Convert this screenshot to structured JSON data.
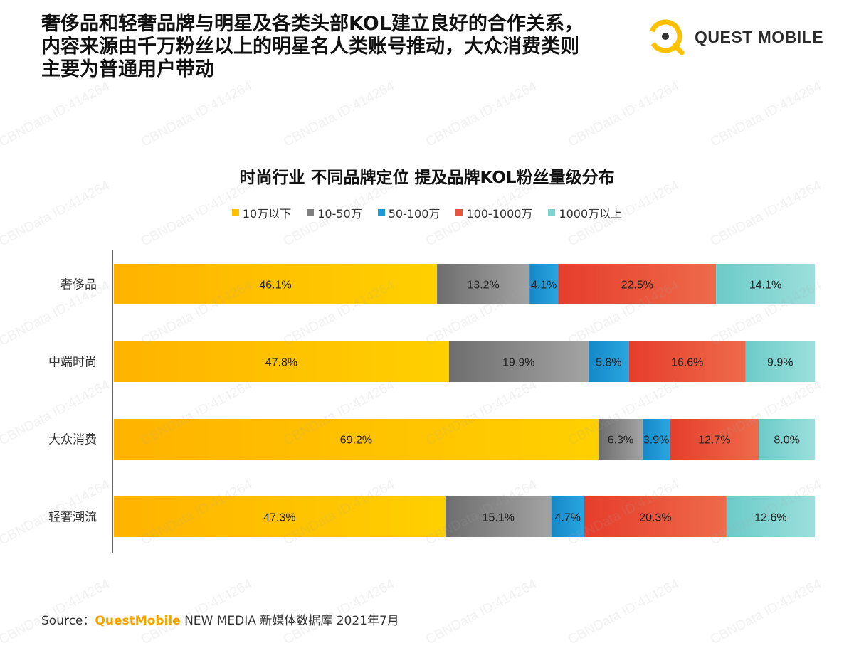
{
  "headline": {
    "line1": "奢侈品和轻奢品牌与明星及各类头部KOL建立良好的合作关系，",
    "line2": "内容来源由千万粉丝以上的明星名人类账号推动，大众消费类则",
    "line3": "主要为普通用户带动"
  },
  "logo": {
    "text": "QUEST MOBILE"
  },
  "watermark": {
    "text": "CBNData ID:414264"
  },
  "source": {
    "prefix": "Source：",
    "brand": "QuestMobile",
    "rest": " NEW MEDIA 新媒体数据库 2021年7月"
  },
  "colors": {
    "yellow": "#FFC000",
    "gray": "#808080",
    "blue": "#1E9AD6",
    "red": "#E9543A",
    "teal": "#7FD3D0"
  },
  "chart_data": {
    "type": "bar",
    "orientation": "horizontal",
    "stacked": true,
    "title": "时尚行业 不同品牌定位 提及品牌KOL粉丝量级分布",
    "legend_position": "top",
    "xlim": [
      0,
      100
    ],
    "categories": [
      "奢侈品",
      "中端时尚",
      "大众消费",
      "轻奢潮流"
    ],
    "series": [
      {
        "name": "10万以下",
        "color": "#FFC000",
        "values": [
          46.1,
          47.8,
          69.2,
          47.3
        ]
      },
      {
        "name": "10-50万",
        "color": "#808080",
        "values": [
          13.2,
          19.9,
          6.3,
          15.1
        ]
      },
      {
        "name": "50-100万",
        "color": "#1E9AD6",
        "values": [
          4.1,
          5.8,
          3.9,
          4.7
        ]
      },
      {
        "name": "100-1000万",
        "color": "#E9543A",
        "values": [
          22.5,
          16.6,
          12.7,
          20.3
        ]
      },
      {
        "name": "1000万以上",
        "color": "#7FD3D0",
        "values": [
          14.1,
          9.9,
          8.0,
          12.6
        ]
      }
    ],
    "data_labels": [
      [
        "46.1%",
        "13.2%",
        "4.1%",
        "22.5%",
        "14.1%"
      ],
      [
        "47.8%",
        "19.9%",
        "5.8%",
        "16.6%",
        "9.9%"
      ],
      [
        "69.2%",
        "6.3%",
        "3.9%",
        "12.7%",
        "8.0%"
      ],
      [
        "47.3%",
        "15.1%",
        "4.7%",
        "20.3%",
        "12.6%"
      ]
    ]
  }
}
